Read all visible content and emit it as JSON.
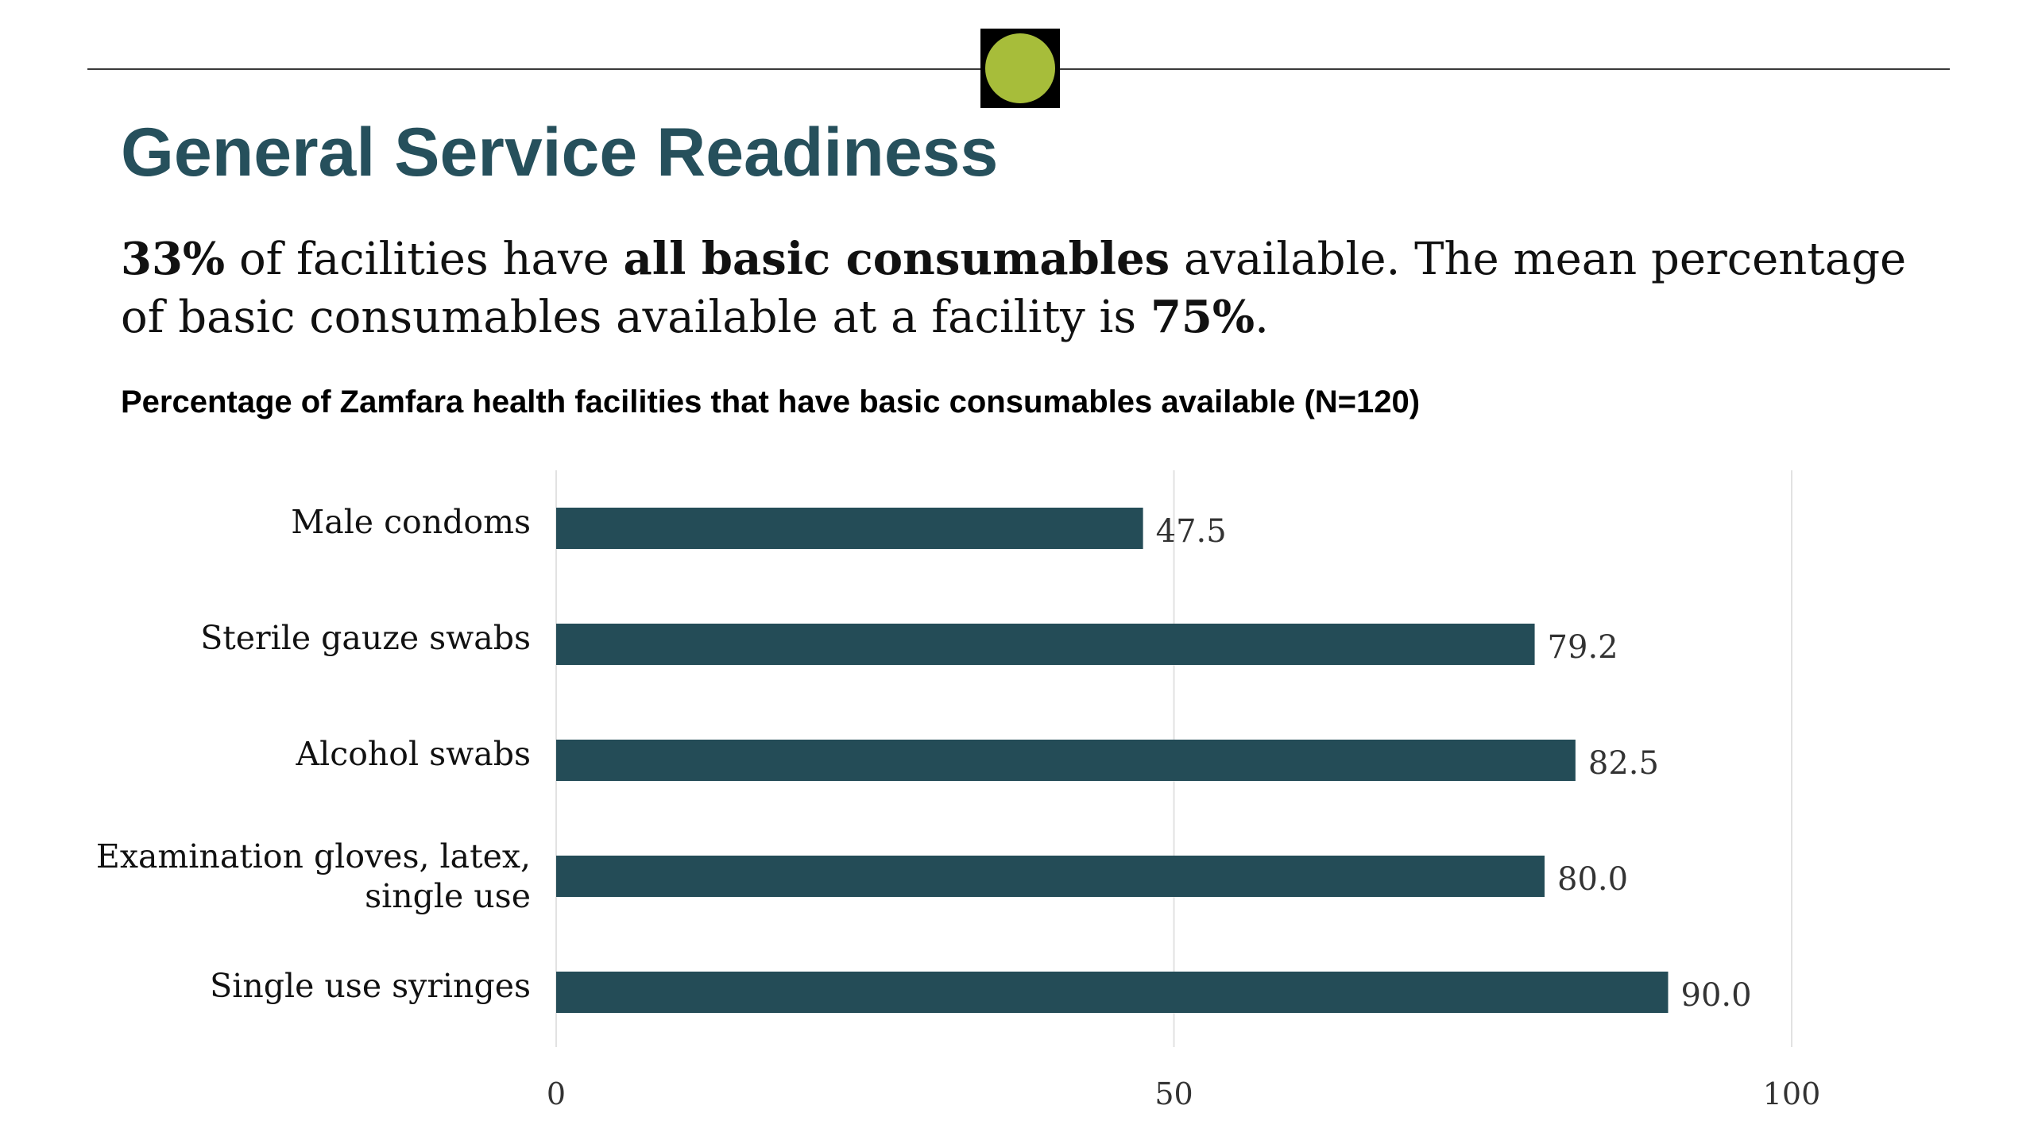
{
  "colors": {
    "title": "#26505c",
    "bar": "#244c57",
    "badge_dot": "#a7bd3a",
    "grid": "#e2e2e2",
    "label": "#111111",
    "tick": "#333333"
  },
  "title": "General Service Readiness",
  "summary": {
    "part1_bold": "33%",
    "part2": " of facilities have ",
    "part3_bold": "all basic consumables",
    "part4": " available. The mean percentage of basic consumables available at a facility is ",
    "part5_bold": "75%",
    "part6": "."
  },
  "chart_data": {
    "type": "bar",
    "orientation": "horizontal",
    "title": "Percentage of Zamfara health facilities that have basic consumables available (N=120)",
    "categories": [
      [
        "Male condoms"
      ],
      [
        "Sterile gauze swabs"
      ],
      [
        "Alcohol swabs"
      ],
      [
        "Examination gloves, latex,",
        "single use"
      ],
      [
        "Single use syringes"
      ]
    ],
    "values": [
      47.5,
      79.2,
      82.5,
      80.0,
      90.0
    ],
    "value_labels": [
      "47.5",
      "79.2",
      "82.5",
      "80.0",
      "90.0"
    ],
    "xlim": [
      0,
      100
    ],
    "xticks": [
      0,
      50,
      100
    ],
    "xtick_labels": [
      "0",
      "50",
      "100"
    ],
    "grid": "vertical",
    "legend": "none"
  }
}
